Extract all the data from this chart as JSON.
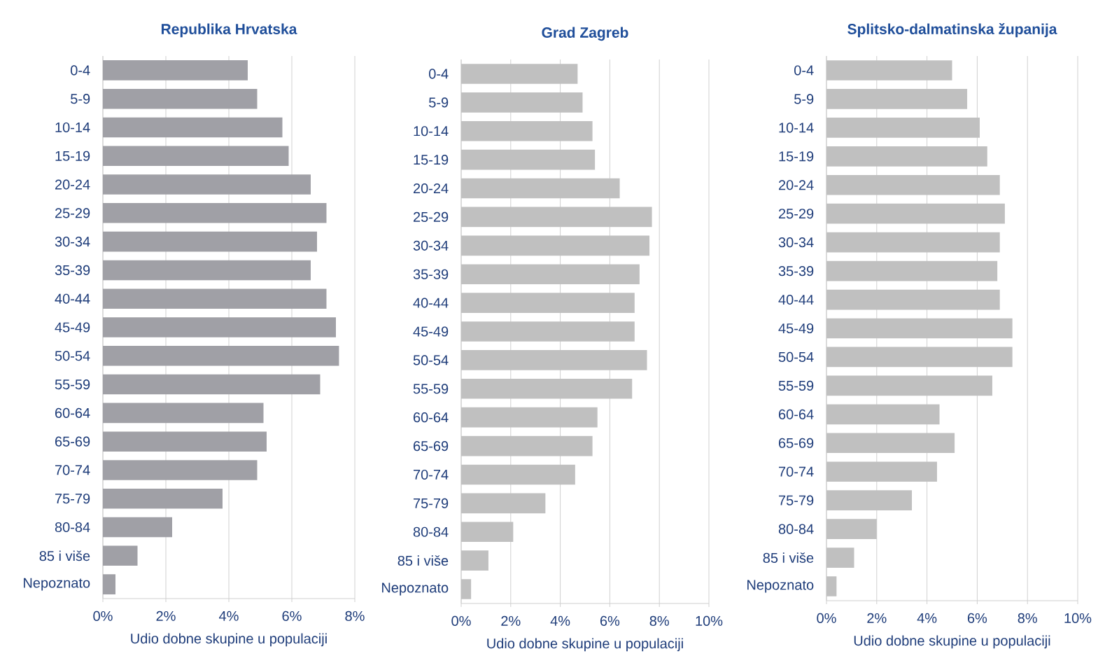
{
  "chart_data": [
    {
      "type": "bar",
      "orientation": "horizontal",
      "title": "Republika Hrvatska",
      "xlabel": "Udio dobne skupine u populaciji",
      "categories": [
        "0-4",
        "5-9",
        "10-14",
        "15-19",
        "20-24",
        "25-29",
        "30-34",
        "35-39",
        "40-44",
        "45-49",
        "50-54",
        "55-59",
        "60-64",
        "65-69",
        "70-74",
        "75-79",
        "80-84",
        "85 i više",
        "Nepoznato"
      ],
      "values": [
        4.6,
        4.9,
        5.7,
        5.9,
        6.6,
        7.1,
        6.8,
        6.6,
        7.1,
        7.4,
        7.5,
        6.9,
        5.1,
        5.2,
        4.9,
        3.8,
        2.2,
        1.1,
        0.4
      ],
      "color": "#a0a0a6",
      "xlim": [
        0,
        8
      ],
      "xticks": [
        {
          "value": 0,
          "label": "0%"
        },
        {
          "value": 2,
          "label": "2%"
        },
        {
          "value": 4,
          "label": "4%"
        },
        {
          "value": 6,
          "label": "6%"
        },
        {
          "value": 8,
          "label": "8%"
        }
      ],
      "grid": "x"
    },
    {
      "type": "bar",
      "orientation": "horizontal",
      "title": "Grad Zagreb",
      "xlabel": "Udio dobne skupine u populaciji",
      "categories": [
        "0-4",
        "5-9",
        "10-14",
        "15-19",
        "20-24",
        "25-29",
        "30-34",
        "35-39",
        "40-44",
        "45-49",
        "50-54",
        "55-59",
        "60-64",
        "65-69",
        "70-74",
        "75-79",
        "80-84",
        "85 i više",
        "Nepoznato"
      ],
      "values": [
        4.7,
        4.9,
        5.3,
        5.4,
        6.4,
        7.7,
        7.6,
        7.2,
        7.0,
        7.0,
        7.5,
        6.9,
        5.5,
        5.3,
        4.6,
        3.4,
        2.1,
        1.1,
        0.4
      ],
      "color": "#c0c0c0",
      "xlim": [
        0,
        10
      ],
      "xticks": [
        {
          "value": 0,
          "label": "0%"
        },
        {
          "value": 2,
          "label": "2%"
        },
        {
          "value": 4,
          "label": "4%"
        },
        {
          "value": 6,
          "label": "6%"
        },
        {
          "value": 8,
          "label": "8%"
        },
        {
          "value": 10,
          "label": "10%"
        }
      ],
      "grid": "x"
    },
    {
      "type": "bar",
      "orientation": "horizontal",
      "title": "Splitsko-dalmatinska županija",
      "xlabel": "Udio dobne skupine u populaciji",
      "categories": [
        "0-4",
        "5-9",
        "10-14",
        "15-19",
        "20-24",
        "25-29",
        "30-34",
        "35-39",
        "40-44",
        "45-49",
        "50-54",
        "55-59",
        "60-64",
        "65-69",
        "70-74",
        "75-79",
        "80-84",
        "85 i više",
        "Nepoznato"
      ],
      "values": [
        5.0,
        5.6,
        6.1,
        6.4,
        6.9,
        7.1,
        6.9,
        6.8,
        6.9,
        7.4,
        7.4,
        6.6,
        4.5,
        5.1,
        4.4,
        3.4,
        2.0,
        1.1,
        0.4
      ],
      "color": "#c0c0c0",
      "xlim": [
        0,
        10
      ],
      "xticks": [
        {
          "value": 0,
          "label": "0%"
        },
        {
          "value": 2,
          "label": "2%"
        },
        {
          "value": 4,
          "label": "4%"
        },
        {
          "value": 6,
          "label": "6%"
        },
        {
          "value": 8,
          "label": "8%"
        },
        {
          "value": 10,
          "label": "10%"
        }
      ],
      "grid": "x"
    }
  ]
}
